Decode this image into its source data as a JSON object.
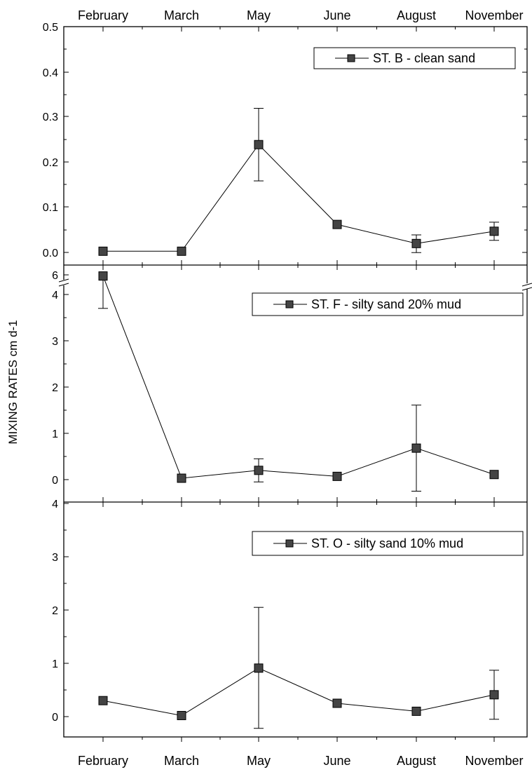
{
  "chart_data": {
    "type": "line",
    "ylabel": "MIXING RATES cm d-1",
    "categories": [
      "February",
      "March",
      "May",
      "June",
      "August",
      "November"
    ],
    "x_axis": {
      "top_tick_labels": true,
      "bottom_tick_labels": true
    },
    "panels": [
      {
        "name": "ST. B - clean sand",
        "ylim": [
          -0.01,
          0.5
        ],
        "yticks": [
          "0.0",
          "0.1",
          "0.2",
          "0.3",
          "0.4",
          "0.5"
        ],
        "values": [
          0.005,
          0.005,
          0.24,
          0.064,
          0.022,
          0.049
        ],
        "err_low": [
          0.005,
          0.005,
          0.16,
          0.064,
          0.002,
          0.029
        ],
        "err_high": [
          0.005,
          0.005,
          0.32,
          0.064,
          0.041,
          0.069
        ],
        "legend": "top-right"
      },
      {
        "name": "ST. F - silty sand 20% mud",
        "ylim": [
          -0.5,
          4.6
        ],
        "axis_break": [
          4.1,
          6
        ],
        "yticks": [
          "0",
          "1",
          "2",
          "3",
          "4",
          "6"
        ],
        "values": [
          4.4,
          0.03,
          0.2,
          0.07,
          0.68,
          0.11
        ],
        "err_low": [
          3.7,
          0.03,
          -0.05,
          0.07,
          -0.25,
          0.11
        ],
        "err_high": [
          4.4,
          0.03,
          0.45,
          0.07,
          1.61,
          0.11
        ],
        "legend": "top-right"
      },
      {
        "name": "ST. O - silty sand 10% mud",
        "ylim": [
          -0.5,
          4
        ],
        "yticks": [
          "0",
          "1",
          "2",
          "3",
          "4"
        ],
        "values": [
          0.3,
          0.02,
          0.91,
          0.25,
          0.1,
          0.41
        ],
        "err_low": [
          0.3,
          0.02,
          -0.22,
          0.25,
          0.1,
          -0.05
        ],
        "err_high": [
          0.3,
          0.02,
          2.05,
          0.25,
          0.1,
          0.87
        ],
        "legend": "top-right"
      }
    ]
  }
}
